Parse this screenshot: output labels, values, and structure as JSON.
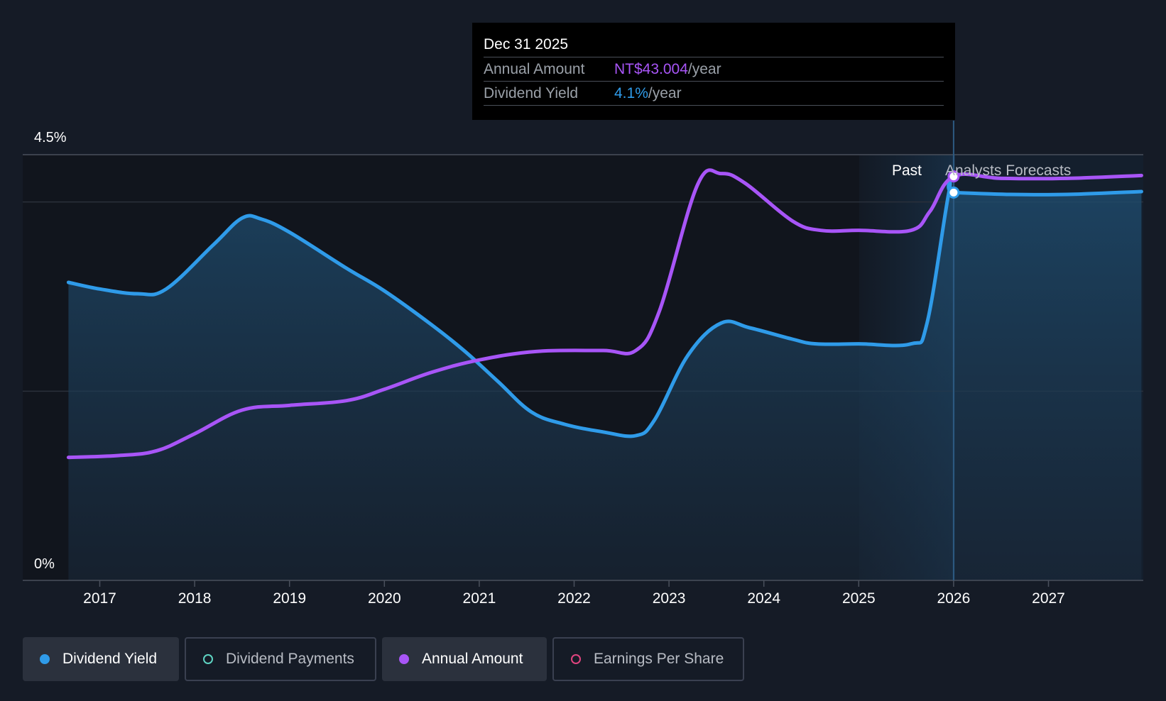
{
  "colors": {
    "background": "#151b26",
    "dividend_yield": "#2f9be9",
    "annual_amount": "#a855f7",
    "dividend_payments": "#5ed3c2",
    "earnings_per_share": "#e0447f",
    "forecast_label": "#b8bcc4"
  },
  "tooltip": {
    "date": "Dec 31 2025",
    "rows": [
      {
        "key": "Annual Amount",
        "value": "NT$43.004",
        "unit": "/year"
      },
      {
        "key": "Dividend Yield",
        "value": "4.1%",
        "unit": "/year"
      }
    ]
  },
  "periods": {
    "past": "Past",
    "forecast": "Analysts Forecasts"
  },
  "legend": [
    {
      "label": "Dividend Yield",
      "active": true,
      "icon": "filled-dot-icon"
    },
    {
      "label": "Dividend Payments",
      "active": false,
      "icon": "hollow-dot-icon"
    },
    {
      "label": "Annual Amount",
      "active": true,
      "icon": "filled-dot-icon"
    },
    {
      "label": "Earnings Per Share",
      "active": false,
      "icon": "hollow-dot-icon"
    }
  ],
  "chart_data": {
    "type": "line",
    "x_ticks": [
      "2017",
      "2018",
      "2019",
      "2020",
      "2021",
      "2022",
      "2023",
      "2024",
      "2025",
      "2026",
      "2027"
    ],
    "y_labels": {
      "top": "4.5%",
      "bottom": "0%"
    },
    "ylim": [
      0,
      4.5
    ],
    "xlim": [
      2016.63,
      2027.98
    ],
    "past_forecast_divider": 2026.0,
    "grid": true,
    "series": [
      {
        "name": "Dividend Yield",
        "unit": "%",
        "area": true,
        "points": [
          [
            2016.67,
            3.15
          ],
          [
            2017.0,
            3.08
          ],
          [
            2017.4,
            3.03
          ],
          [
            2017.7,
            3.08
          ],
          [
            2018.2,
            3.55
          ],
          [
            2018.5,
            3.83
          ],
          [
            2018.7,
            3.82
          ],
          [
            2019.0,
            3.68
          ],
          [
            2019.6,
            3.3
          ],
          [
            2020.0,
            3.06
          ],
          [
            2020.5,
            2.7
          ],
          [
            2020.85,
            2.42
          ],
          [
            2021.2,
            2.1
          ],
          [
            2021.55,
            1.78
          ],
          [
            2021.9,
            1.65
          ],
          [
            2022.3,
            1.57
          ],
          [
            2022.65,
            1.53
          ],
          [
            2022.85,
            1.7
          ],
          [
            2023.2,
            2.38
          ],
          [
            2023.55,
            2.72
          ],
          [
            2023.85,
            2.67
          ],
          [
            2024.3,
            2.55
          ],
          [
            2024.55,
            2.5
          ],
          [
            2025.0,
            2.5
          ],
          [
            2025.55,
            2.5
          ],
          [
            2025.72,
            2.72
          ],
          [
            2025.95,
            4.1
          ],
          [
            2026.0,
            4.1
          ],
          [
            2026.6,
            4.08
          ],
          [
            2027.2,
            4.08
          ],
          [
            2027.98,
            4.11
          ]
        ]
      },
      {
        "name": "Annual Amount",
        "unit": "NT$",
        "area": false,
        "points": [
          [
            2016.67,
            1.3
          ],
          [
            2017.2,
            1.32
          ],
          [
            2017.6,
            1.37
          ],
          [
            2018.0,
            1.55
          ],
          [
            2018.5,
            1.8
          ],
          [
            2019.0,
            1.85
          ],
          [
            2019.6,
            1.9
          ],
          [
            2020.0,
            2.02
          ],
          [
            2020.5,
            2.2
          ],
          [
            2021.0,
            2.33
          ],
          [
            2021.6,
            2.42
          ],
          [
            2022.3,
            2.43
          ],
          [
            2022.65,
            2.43
          ],
          [
            2022.9,
            2.85
          ],
          [
            2023.3,
            4.18
          ],
          [
            2023.55,
            4.3
          ],
          [
            2023.8,
            4.2
          ],
          [
            2024.3,
            3.8
          ],
          [
            2024.6,
            3.7
          ],
          [
            2025.0,
            3.7
          ],
          [
            2025.55,
            3.7
          ],
          [
            2025.75,
            3.9
          ],
          [
            2026.0,
            4.27
          ],
          [
            2026.5,
            4.25
          ],
          [
            2027.2,
            4.25
          ],
          [
            2027.98,
            4.28
          ]
        ]
      }
    ]
  }
}
